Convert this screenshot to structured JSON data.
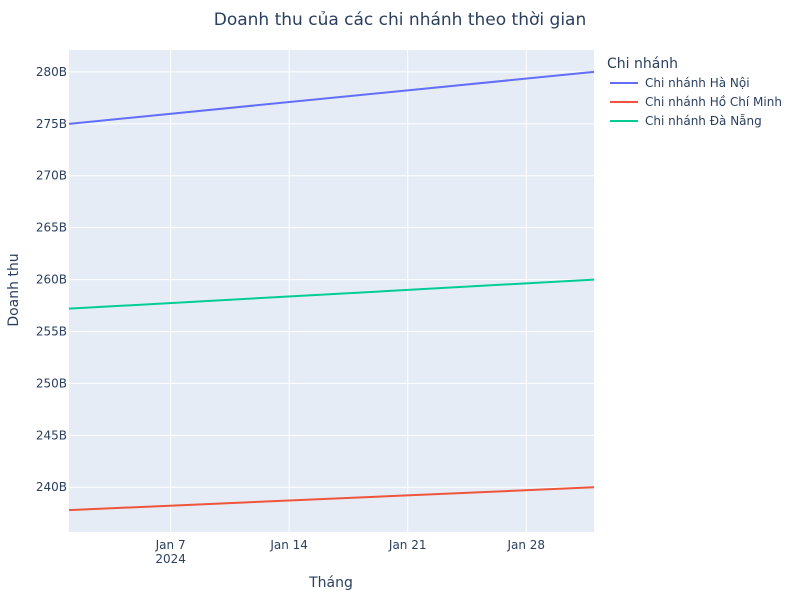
{
  "chart_data": {
    "type": "line",
    "title": "Doanh thu của các chi nhánh theo thời gian",
    "xlabel": "Tháng",
    "ylabel": "Doanh thu",
    "x": [
      "2024-01-01",
      "2024-02-01"
    ],
    "series": [
      {
        "name": "Chi nhánh Hà Nội",
        "color": "#636efa",
        "values": [
          275000000000,
          280000000000
        ]
      },
      {
        "name": "Chi nhánh Hồ Chí Minh",
        "color": "#ef553b",
        "values": [
          237800000000,
          240000000000
        ]
      },
      {
        "name": "Chi nhánh Đà Nẵng",
        "color": "#00cc96",
        "values": [
          257200000000,
          260000000000
        ]
      }
    ],
    "x_ticks": [
      {
        "date": "2024-01-07",
        "label": "Jan 7",
        "sublabel": "2024"
      },
      {
        "date": "2024-01-14",
        "label": "Jan 14",
        "sublabel": ""
      },
      {
        "date": "2024-01-21",
        "label": "Jan 21",
        "sublabel": ""
      },
      {
        "date": "2024-01-28",
        "label": "Jan 28",
        "sublabel": ""
      }
    ],
    "y_ticks": [
      {
        "value": 240000000000,
        "label": "240B"
      },
      {
        "value": 245000000000,
        "label": "245B"
      },
      {
        "value": 250000000000,
        "label": "250B"
      },
      {
        "value": 255000000000,
        "label": "255B"
      },
      {
        "value": 260000000000,
        "label": "260B"
      },
      {
        "value": 265000000000,
        "label": "265B"
      },
      {
        "value": 270000000000,
        "label": "270B"
      },
      {
        "value": 275000000000,
        "label": "275B"
      },
      {
        "value": 280000000000,
        "label": "280B"
      }
    ],
    "xlim": [
      "2024-01-01",
      "2024-02-01"
    ],
    "ylim": [
      235690000000,
      282110000000
    ],
    "grid": true,
    "legend": {
      "title": "Chi nhánh",
      "position": "right"
    },
    "plot_background": "#e5ecf6"
  }
}
